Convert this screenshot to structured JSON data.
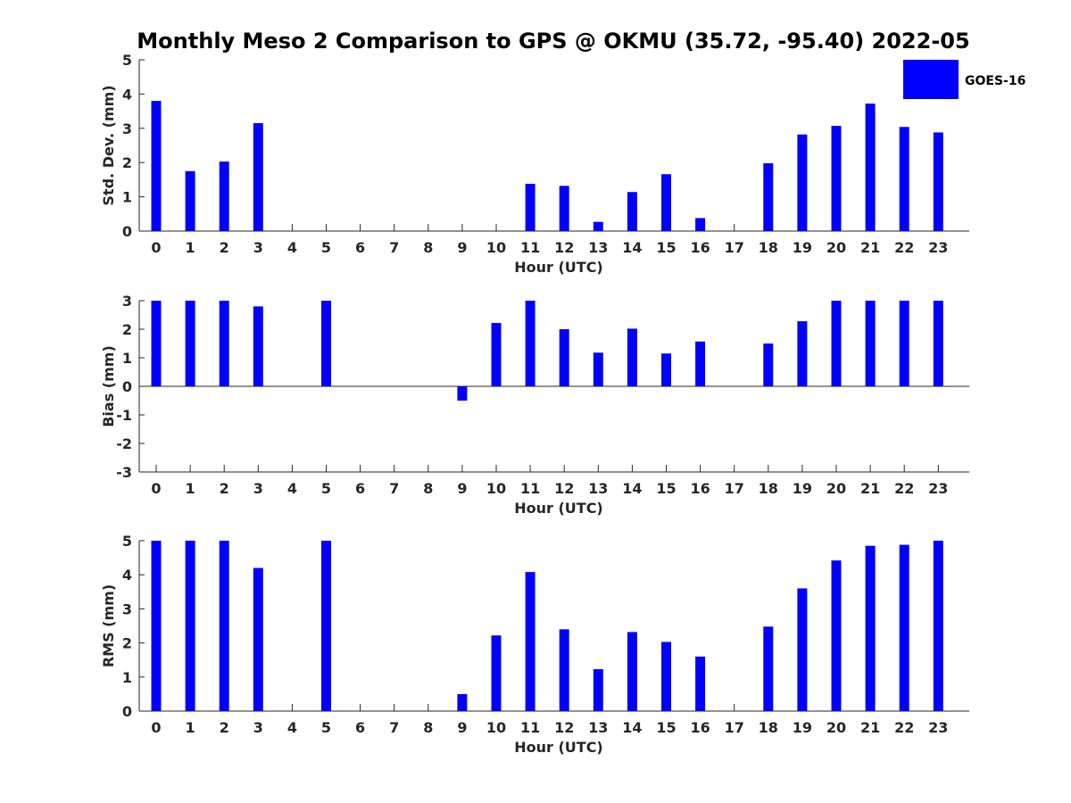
{
  "title": "Monthly Meso 2 Comparison to GPS @ OKMU (35.72, -95.40) 2022-05",
  "legend": {
    "label": "GOES-16",
    "color": "#0000ff",
    "placement": "top-right"
  },
  "chart_data": [
    {
      "type": "bar",
      "ylabel": "Std. Dev. (mm)",
      "xlabel": "Hour (UTC)",
      "ylim": [
        0,
        5
      ],
      "yticks": [
        "0",
        "1",
        "2",
        "3",
        "4",
        "5"
      ],
      "categories": [
        "0",
        "1",
        "2",
        "3",
        "4",
        "5",
        "6",
        "7",
        "8",
        "9",
        "10",
        "11",
        "12",
        "13",
        "14",
        "15",
        "16",
        "17",
        "18",
        "19",
        "20",
        "21",
        "22",
        "23"
      ],
      "series": [
        {
          "name": "GOES-16",
          "values": [
            3.8,
            1.75,
            2.03,
            3.15,
            null,
            null,
            null,
            null,
            null,
            null,
            null,
            1.38,
            1.32,
            0.27,
            1.14,
            1.66,
            0.38,
            null,
            1.98,
            2.82,
            3.07,
            3.72,
            3.04,
            2.88
          ]
        }
      ]
    },
    {
      "type": "bar",
      "ylabel": "Bias (mm)",
      "xlabel": "Hour (UTC)",
      "ylim": [
        -3,
        3
      ],
      "yticks": [
        "-3",
        "-2",
        "-1",
        "0",
        "1",
        "2",
        "3"
      ],
      "categories": [
        "0",
        "1",
        "2",
        "3",
        "4",
        "5",
        "6",
        "7",
        "8",
        "9",
        "10",
        "11",
        "12",
        "13",
        "14",
        "15",
        "16",
        "17",
        "18",
        "19",
        "20",
        "21",
        "22",
        "23"
      ],
      "series": [
        {
          "name": "GOES-16",
          "values": [
            3.0,
            3.0,
            3.0,
            2.8,
            null,
            3.0,
            null,
            null,
            null,
            -0.5,
            2.22,
            3.0,
            2.0,
            1.18,
            2.02,
            1.15,
            1.57,
            null,
            1.5,
            2.28,
            3.0,
            3.0,
            3.0,
            3.0
          ]
        }
      ]
    },
    {
      "type": "bar",
      "ylabel": "RMS (mm)",
      "xlabel": "Hour (UTC)",
      "ylim": [
        0,
        5
      ],
      "yticks": [
        "0",
        "1",
        "2",
        "3",
        "4",
        "5"
      ],
      "categories": [
        "0",
        "1",
        "2",
        "3",
        "4",
        "5",
        "6",
        "7",
        "8",
        "9",
        "10",
        "11",
        "12",
        "13",
        "14",
        "15",
        "16",
        "17",
        "18",
        "19",
        "20",
        "21",
        "22",
        "23"
      ],
      "series": [
        {
          "name": "GOES-16",
          "values": [
            5.0,
            5.0,
            5.0,
            4.2,
            null,
            5.0,
            null,
            null,
            null,
            0.5,
            2.22,
            4.08,
            2.4,
            1.23,
            2.32,
            2.03,
            1.6,
            null,
            2.48,
            3.6,
            4.42,
            4.85,
            4.88,
            5.0
          ]
        }
      ]
    }
  ]
}
